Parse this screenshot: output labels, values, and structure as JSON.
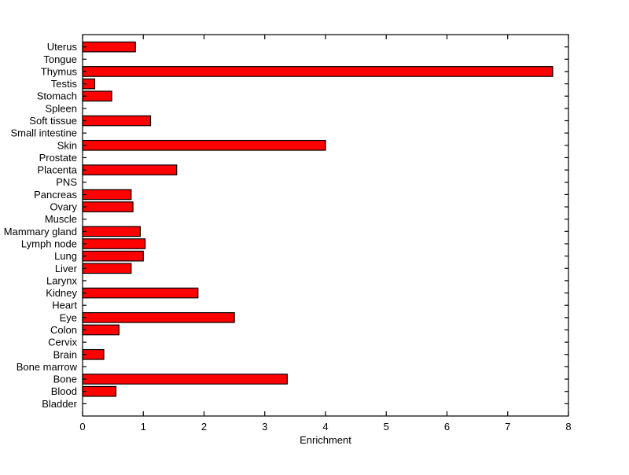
{
  "chart_data": {
    "type": "bar",
    "orientation": "horizontal",
    "title": "",
    "xlabel": "Enrichment",
    "ylabel": "",
    "xlim": [
      0,
      8
    ],
    "x_ticks": [
      0,
      1,
      2,
      3,
      4,
      5,
      6,
      7,
      8
    ],
    "grid": false,
    "legend_position": "none",
    "bar_color": "#ff0000",
    "bar_edge_color": "#000000",
    "axis_color": "#000000",
    "background_color": "#ffffff",
    "categories_top_to_bottom": [
      "Uterus",
      "Tongue",
      "Thymus",
      "Testis",
      "Stomach",
      "Spleen",
      "Soft tissue",
      "Small intestine",
      "Skin",
      "Prostate",
      "Placenta",
      "PNS",
      "Pancreas",
      "Ovary",
      "Muscle",
      "Mammary gland",
      "Lymph node",
      "Lung",
      "Liver",
      "Larynx",
      "Kidney",
      "Heart",
      "Eye",
      "Colon",
      "Cervix",
      "Brain",
      "Bone marrow",
      "Bone",
      "Blood",
      "Bladder"
    ],
    "values": [
      0.87,
      0,
      7.74,
      0.2,
      0.48,
      0,
      1.12,
      0,
      4.0,
      0,
      1.55,
      0,
      0.8,
      0.83,
      0,
      0.95,
      1.03,
      1.0,
      0.8,
      0,
      1.9,
      0,
      2.5,
      0.6,
      0,
      0.35,
      0,
      3.37,
      0.55,
      0
    ]
  }
}
